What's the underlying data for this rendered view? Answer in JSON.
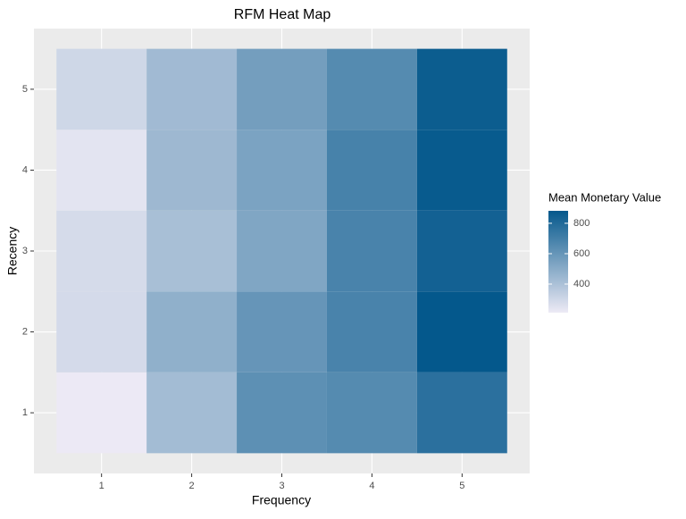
{
  "chart_data": {
    "type": "heatmap",
    "title": "RFM Heat Map",
    "x_label": "Frequency",
    "y_label": "Recency",
    "x": [
      1,
      2,
      3,
      4,
      5
    ],
    "y": [
      1,
      2,
      3,
      4,
      5
    ],
    "values": [
      [
        215,
        425,
        625,
        650,
        770
      ],
      [
        285,
        480,
        600,
        685,
        882
      ],
      [
        280,
        410,
        525,
        685,
        840
      ],
      [
        240,
        440,
        540,
        690,
        870
      ],
      [
        300,
        430,
        560,
        650,
        860
      ]
    ],
    "xlim": [
      0.25,
      5.75
    ],
    "ylim": [
      0.25,
      5.75
    ],
    "xticks": [
      1,
      2,
      3,
      4,
      5
    ],
    "yticks": [
      1,
      2,
      3,
      4,
      5
    ],
    "grid": true,
    "legend_title": "Mean Monetary Value",
    "colorlim": [
      212,
      882
    ],
    "colorticks": [
      400,
      600,
      800
    ],
    "low_color": "#edeaf5",
    "high_color": "#04588c",
    "legend_position": "right"
  }
}
